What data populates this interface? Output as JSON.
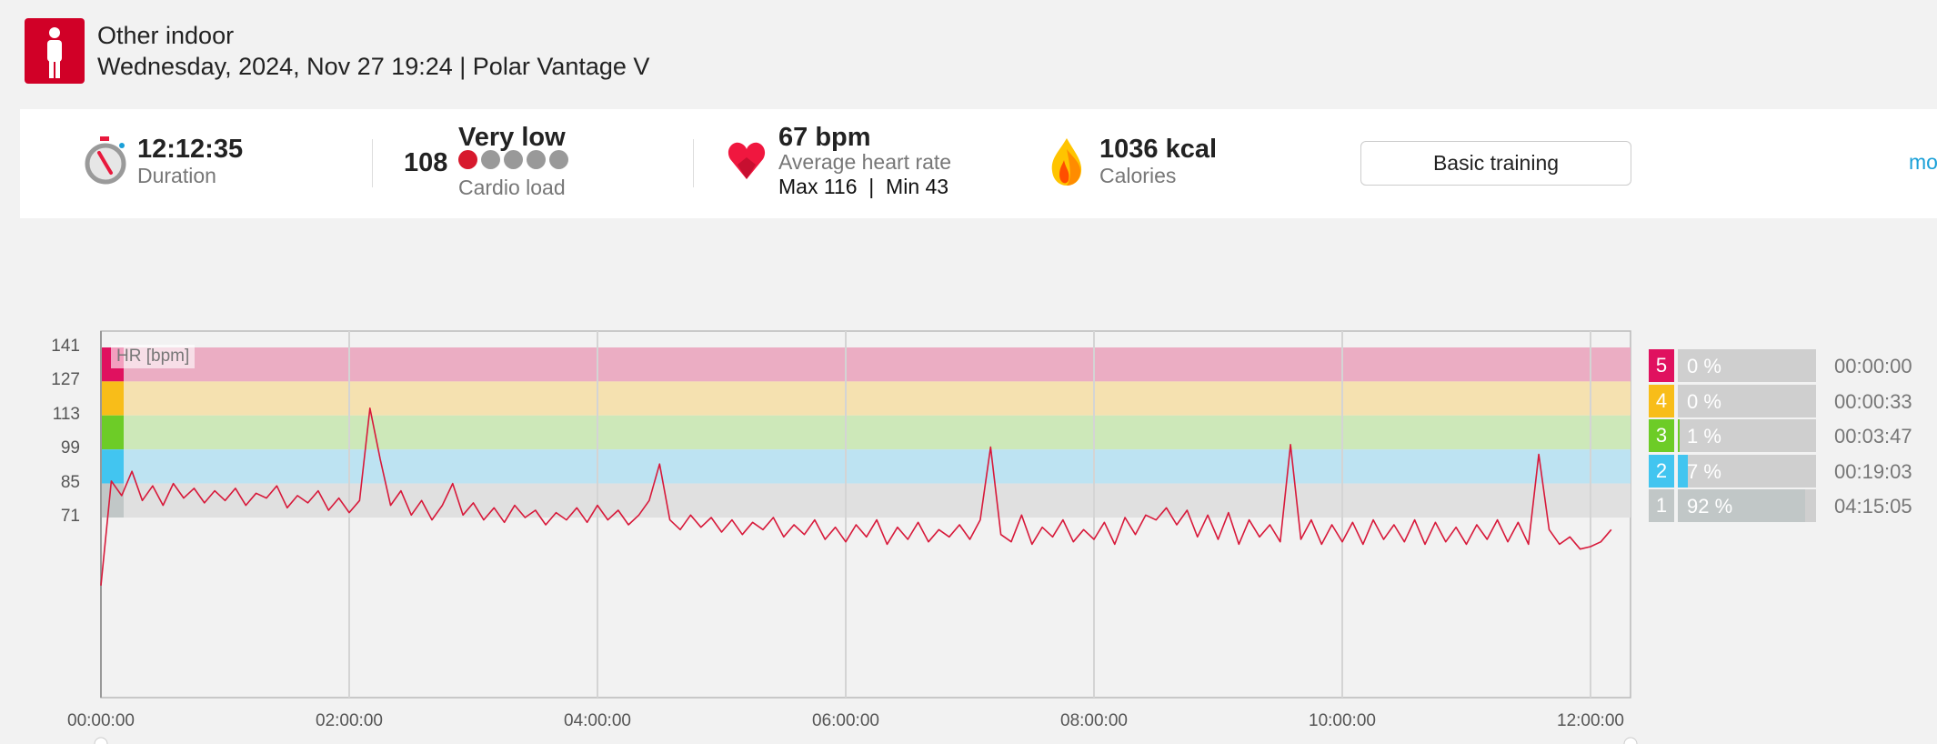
{
  "header": {
    "sport": "Other indoor",
    "subtitle": "Wednesday, 2024, Nov 27 19:24 | Polar Vantage V",
    "sport_icon": "person-standing-icon"
  },
  "summary": {
    "duration": {
      "value": "12:12:35",
      "label": "Duration"
    },
    "cardio_load": {
      "level": "Very low",
      "value": "108",
      "label": "Cardio load",
      "dots_filled": 1,
      "dots_total": 5
    },
    "heart_rate": {
      "value": "67 bpm",
      "label": "Average heart rate",
      "maxmin": "Max 116  |  Min 43"
    },
    "calories": {
      "value": "1036 kcal",
      "label": "Calories"
    },
    "training_benefit_button": "Basic training",
    "more_link": "mo"
  },
  "zones": [
    {
      "zone": "5",
      "pct": "0 %",
      "fraction": 0,
      "time": "00:00:00",
      "color": "#e0115f",
      "band": "#ebadc3"
    },
    {
      "zone": "4",
      "pct": "0 %",
      "fraction": 0,
      "time": "00:00:33",
      "color": "#f8bd19",
      "band": "#f5e1b0"
    },
    {
      "zone": "3",
      "pct": "1 %",
      "fraction": 0.01,
      "time": "00:03:47",
      "color": "#6dcc27",
      "band": "#cde8b9"
    },
    {
      "zone": "2",
      "pct": "7 %",
      "fraction": 0.07,
      "time": "00:19:03",
      "color": "#42c5f0",
      "band": "#bde3f2"
    },
    {
      "zone": "1",
      "pct": "92 %",
      "fraction": 0.92,
      "time": "04:15:05",
      "color": "#c1c7c7",
      "band": "#e0e0e0"
    }
  ],
  "chart_data": {
    "type": "line",
    "series_label": "HR [bpm]",
    "ylabel": "HR [bpm]",
    "yticks": [
      "141",
      "127",
      "113",
      "99",
      "85",
      "71"
    ],
    "zone_limits": [
      141,
      127,
      113,
      99,
      85,
      71
    ],
    "xticks": [
      "00:00:00",
      "02:00:00",
      "04:00:00",
      "06:00:00",
      "08:00:00",
      "10:00:00",
      "12:00:00"
    ],
    "xtick_minutes": [
      0,
      120,
      240,
      360,
      480,
      600,
      720
    ],
    "line_color": "#d7193a",
    "interval_minutes": 5,
    "values": [
      43,
      86,
      80,
      90,
      78,
      84,
      76,
      85,
      79,
      83,
      77,
      82,
      78,
      83,
      76,
      81,
      79,
      84,
      75,
      80,
      77,
      82,
      74,
      79,
      73,
      78,
      116,
      95,
      76,
      82,
      72,
      78,
      70,
      76,
      85,
      72,
      77,
      70,
      75,
      69,
      76,
      71,
      74,
      68,
      73,
      70,
      75,
      69,
      76,
      70,
      74,
      68,
      72,
      78,
      93,
      70,
      66,
      72,
      67,
      71,
      65,
      70,
      64,
      69,
      66,
      71,
      63,
      68,
      64,
      70,
      62,
      67,
      61,
      68,
      63,
      70,
      60,
      67,
      62,
      69,
      61,
      66,
      63,
      68,
      62,
      70,
      100,
      64,
      61,
      72,
      60,
      67,
      63,
      70,
      61,
      66,
      62,
      69,
      60,
      71,
      64,
      72,
      70,
      75,
      68,
      74,
      63,
      72,
      62,
      73,
      60,
      70,
      63,
      68,
      61,
      101,
      62,
      70,
      60,
      68,
      61,
      69,
      60,
      70,
      62,
      68,
      61,
      70,
      60,
      69,
      61,
      67,
      60,
      68,
      62,
      70,
      61,
      69,
      60,
      97,
      66,
      60,
      63,
      58,
      59,
      61,
      66
    ]
  }
}
